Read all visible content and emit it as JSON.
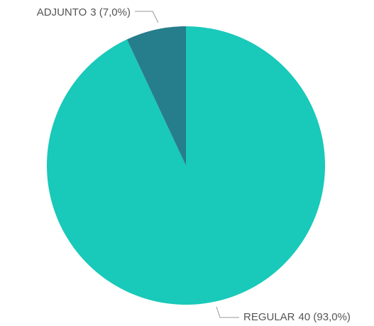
{
  "chart_data": {
    "type": "pie",
    "categories": [
      "REGULAR",
      "ADJUNTO"
    ],
    "values": [
      40,
      3
    ],
    "value_labels": [
      "40 (93,0%)",
      "3 (7,0%)"
    ],
    "colors": [
      "#19c9b9",
      "#267d8b"
    ]
  }
}
